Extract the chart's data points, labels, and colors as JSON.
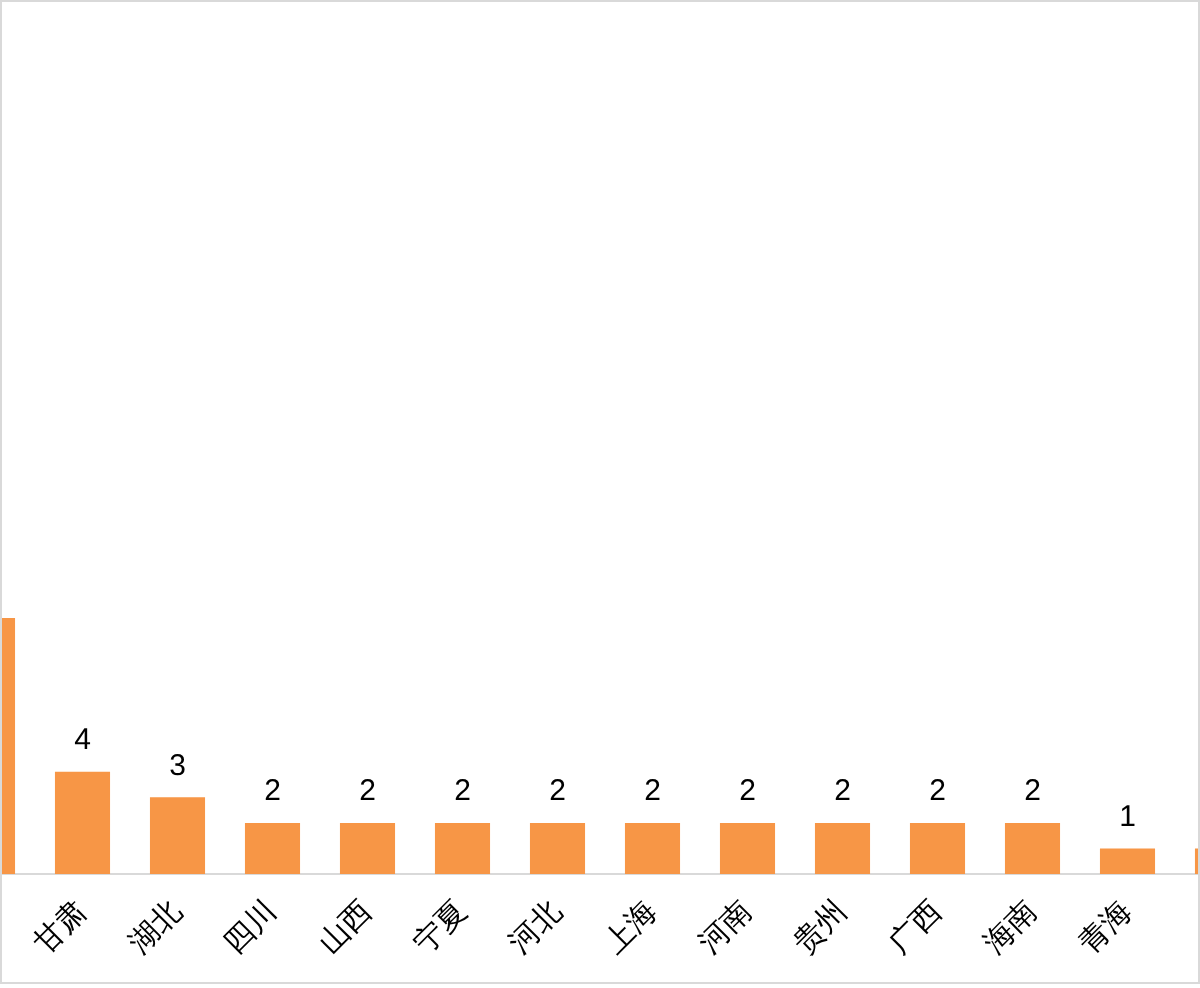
{
  "chart_data": {
    "type": "bar",
    "categories": [
      null,
      "甘肃",
      "湖北",
      "四川",
      "山西",
      "宁夏",
      "河北",
      "上海",
      "河南",
      "贵州",
      "广西",
      "海南",
      "青海",
      null
    ],
    "values": [
      10,
      4,
      3,
      2,
      2,
      2,
      2,
      2,
      2,
      2,
      2,
      2,
      1,
      1
    ],
    "value_labels": [
      null,
      "4",
      "3",
      "2",
      "2",
      "2",
      "2",
      "2",
      "2",
      "2",
      "2",
      "2",
      "1",
      null
    ],
    "color": "#f79646",
    "grid": false,
    "legend": false
  }
}
